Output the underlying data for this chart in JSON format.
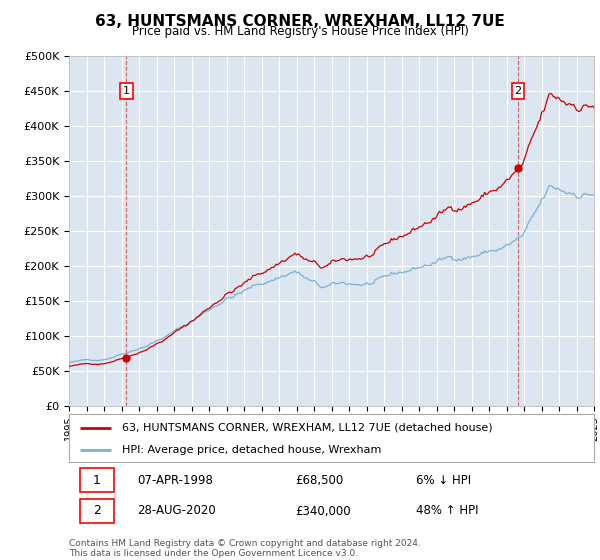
{
  "title": "63, HUNTSMANS CORNER, WREXHAM, LL12 7UE",
  "subtitle": "Price paid vs. HM Land Registry's House Price Index (HPI)",
  "plot_bg_color": "#dce6f1",
  "hpi_color": "#7bafd4",
  "price_color": "#cc0000",
  "sale1_date_num": 1998.27,
  "sale1_price": 68500,
  "sale2_date_num": 2020.66,
  "sale2_price": 340000,
  "sale1_label": "07-APR-1998",
  "sale1_amount": "£68,500",
  "sale1_hpi": "6% ↓ HPI",
  "sale2_label": "28-AUG-2020",
  "sale2_amount": "£340,000",
  "sale2_hpi": "48% ↑ HPI",
  "legend1": "63, HUNTSMANS CORNER, WREXHAM, LL12 7UE (detached house)",
  "legend2": "HPI: Average price, detached house, Wrexham",
  "footer": "Contains HM Land Registry data © Crown copyright and database right 2024.\nThis data is licensed under the Open Government Licence v3.0.",
  "ylim_max": 500000,
  "xmin": 1995,
  "xmax": 2025
}
